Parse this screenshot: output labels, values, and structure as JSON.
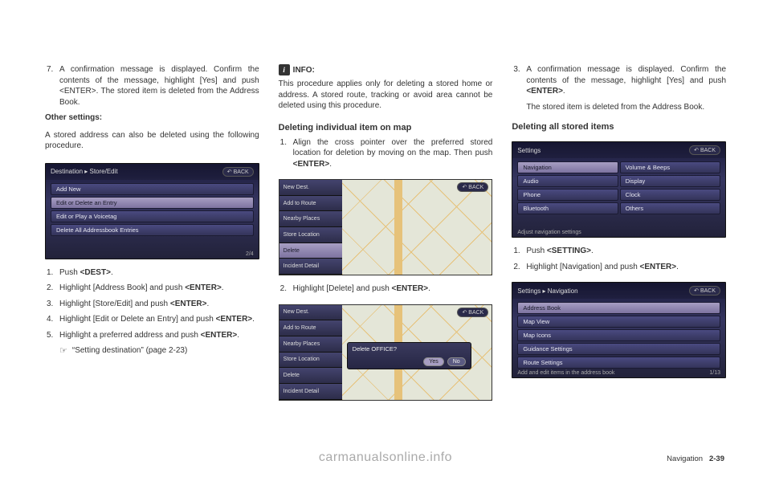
{
  "col1": {
    "step7": {
      "n": "7.",
      "t": "A confirmation message is displayed. Confirm the contents of the message, highlight [Yes] and push <ENTER>. The stored item is deleted from the Address Book."
    },
    "other_settings_label": "Other settings:",
    "other_settings_desc": "A stored address can also be deleted using the following procedure.",
    "ss1": {
      "title": "Destination ▸ Store/Edit",
      "back": "↶ BACK",
      "rows": [
        "Add New",
        "Edit or Delete an Entry",
        "Edit or Play a Voicetag",
        "Delete All Addressbook Entries"
      ],
      "selected_index": 1,
      "footer": "2/4"
    },
    "steps": [
      {
        "n": "1.",
        "t": "Push <DEST>."
      },
      {
        "n": "2.",
        "t": "Highlight [Address Book] and push <ENTER>."
      },
      {
        "n": "3.",
        "t": "Highlight [Store/Edit] and push <ENTER>."
      },
      {
        "n": "4.",
        "t": "Highlight [Edit or Delete an Entry] and push <ENTER>."
      },
      {
        "n": "5.",
        "t": "Highlight a preferred address and push <ENTER>."
      }
    ],
    "ref": "“Setting destination” (page 2-23)"
  },
  "col2": {
    "info_label": "INFO:",
    "info_text": "This procedure applies only for deleting a stored home or address. A stored route, tracking or avoid area cannot be deleted using this procedure.",
    "heading": "Deleting individual item on map",
    "step1": {
      "n": "1.",
      "t": "Align the cross pointer over the preferred stored location for deletion by moving on the map. Then push <ENTER>."
    },
    "map1": {
      "back": "↶ BACK",
      "rows": [
        "New Dest.",
        "Add to Route",
        "Nearby Places",
        "Store Location",
        "Delete",
        "Incident Detail"
      ],
      "selected_index": 4
    },
    "step2": {
      "n": "2.",
      "t": "Highlight [Delete] and push <ENTER>."
    },
    "map2": {
      "back": "↶ BACK",
      "dialog_text": "Delete OFFICE?",
      "yes": "Yes",
      "no": "No"
    }
  },
  "col3": {
    "step3": {
      "n": "3.",
      "t": "A confirmation message is displayed. Confirm the contents of the message, highlight [Yes] and push <ENTER>."
    },
    "step3b": "The stored item is deleted from the Address Book.",
    "heading": "Deleting all stored items",
    "ss_settings": {
      "title": "Settings",
      "back": "↶ BACK",
      "left": [
        "Navigation",
        "Audio",
        "Phone",
        "Bluetooth"
      ],
      "right": [
        "Volume & Beeps",
        "Display",
        "Clock",
        "Others"
      ],
      "selected_left_index": 0,
      "caption": "Adjust navigation settings"
    },
    "steps": [
      {
        "n": "1.",
        "t": "Push <SETTING>."
      },
      {
        "n": "2.",
        "t": "Highlight [Navigation] and push <ENTER>."
      }
    ],
    "ss_nav": {
      "title": "Settings ▸ Navigation",
      "back": "↶ BACK",
      "rows": [
        "Address Book",
        "Map View",
        "Map Icons",
        "Guidance Settings",
        "Route Settings"
      ],
      "selected_index": 0,
      "footer": "1/13",
      "caption": "Add and edit items in the address book"
    }
  },
  "watermark": "carmanualsonline.info",
  "footer_label": "Navigation",
  "footer_page": "2-39"
}
